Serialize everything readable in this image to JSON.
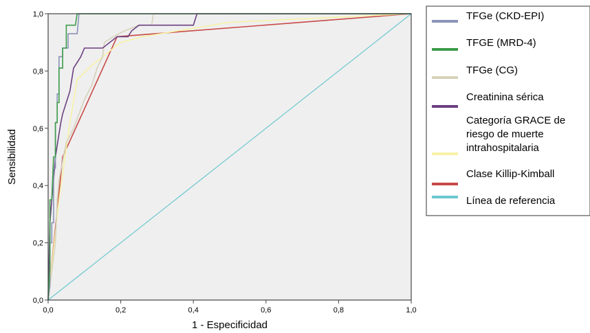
{
  "chart_data": {
    "type": "line",
    "title": "",
    "xlabel": "1 - Especificidad",
    "ylabel": "Sensibilidad",
    "xlim": [
      0,
      1
    ],
    "ylim": [
      0,
      1
    ],
    "xticks": [
      "0,0",
      "0,2",
      "0,4",
      "0,6",
      "0,8",
      "1,0"
    ],
    "yticks": [
      "0,0",
      "0,2",
      "0,4",
      "0,6",
      "0,8",
      "1,0"
    ],
    "grid": false,
    "legend_position": "right",
    "background": "#efefef",
    "series": [
      {
        "name": "TFGe (CKD-EPI)",
        "color": "#8a93b8",
        "points": [
          [
            0,
            0
          ],
          [
            0.005,
            0.05
          ],
          [
            0.005,
            0.2
          ],
          [
            0.01,
            0.2
          ],
          [
            0.01,
            0.27
          ],
          [
            0.015,
            0.27
          ],
          [
            0.015,
            0.46
          ],
          [
            0.02,
            0.46
          ],
          [
            0.02,
            0.62
          ],
          [
            0.025,
            0.62
          ],
          [
            0.025,
            0.72
          ],
          [
            0.03,
            0.72
          ],
          [
            0.03,
            0.85
          ],
          [
            0.04,
            0.85
          ],
          [
            0.04,
            0.88
          ],
          [
            0.055,
            0.88
          ],
          [
            0.055,
            0.93
          ],
          [
            0.08,
            0.93
          ],
          [
            0.085,
            1.0
          ],
          [
            1,
            1
          ]
        ]
      },
      {
        "name": "TFGE (MRD-4)",
        "color": "#3d9b4a",
        "points": [
          [
            0,
            0
          ],
          [
            0.005,
            0.12
          ],
          [
            0.005,
            0.35
          ],
          [
            0.01,
            0.35
          ],
          [
            0.015,
            0.5
          ],
          [
            0.02,
            0.5
          ],
          [
            0.02,
            0.62
          ],
          [
            0.025,
            0.62
          ],
          [
            0.025,
            0.69
          ],
          [
            0.03,
            0.69
          ],
          [
            0.03,
            0.81
          ],
          [
            0.04,
            0.81
          ],
          [
            0.04,
            0.88
          ],
          [
            0.05,
            0.88
          ],
          [
            0.05,
            0.96
          ],
          [
            0.075,
            0.96
          ],
          [
            0.08,
            1.0
          ],
          [
            1,
            1
          ]
        ]
      },
      {
        "name": "TFGe (CG)",
        "color": "#d6d2bb",
        "points": [
          [
            0,
            0
          ],
          [
            0.02,
            0.2
          ],
          [
            0.025,
            0.35
          ],
          [
            0.03,
            0.42
          ],
          [
            0.05,
            0.55
          ],
          [
            0.07,
            0.6
          ],
          [
            0.085,
            0.65
          ],
          [
            0.1,
            0.7
          ],
          [
            0.12,
            0.75
          ],
          [
            0.135,
            0.81
          ],
          [
            0.15,
            0.85
          ],
          [
            0.155,
            0.9
          ],
          [
            0.18,
            0.92
          ],
          [
            0.21,
            0.94
          ],
          [
            0.25,
            0.96
          ],
          [
            0.285,
            0.96
          ],
          [
            0.29,
            1.0
          ],
          [
            1,
            1
          ]
        ]
      },
      {
        "name": "Creatinina sérica",
        "color": "#6b3f7f",
        "points": [
          [
            0,
            0
          ],
          [
            0.005,
            0.27
          ],
          [
            0.01,
            0.35
          ],
          [
            0.015,
            0.42
          ],
          [
            0.02,
            0.5
          ],
          [
            0.025,
            0.54
          ],
          [
            0.03,
            0.58
          ],
          [
            0.035,
            0.62
          ],
          [
            0.04,
            0.65
          ],
          [
            0.05,
            0.69
          ],
          [
            0.06,
            0.73
          ],
          [
            0.07,
            0.81
          ],
          [
            0.09,
            0.85
          ],
          [
            0.1,
            0.88
          ],
          [
            0.15,
            0.88
          ],
          [
            0.19,
            0.92
          ],
          [
            0.22,
            0.92
          ],
          [
            0.23,
            0.94
          ],
          [
            0.25,
            0.96
          ],
          [
            0.4,
            0.96
          ],
          [
            0.41,
            1.0
          ],
          [
            1,
            1
          ]
        ]
      },
      {
        "name": "Categoría GRACE de riesgo de muerte intrahospitalaria",
        "color": "#f7f2a6",
        "points": [
          [
            0,
            0
          ],
          [
            0.01,
            0.12
          ],
          [
            0.03,
            0.35
          ],
          [
            0.06,
            0.62
          ],
          [
            0.08,
            0.77
          ],
          [
            0.12,
            0.82
          ],
          [
            0.2,
            0.9
          ],
          [
            0.26,
            0.92
          ],
          [
            0.5,
            0.97
          ],
          [
            1,
            1
          ]
        ]
      },
      {
        "name": "Clase Killip-Kimball",
        "color": "#c84a48",
        "points": [
          [
            0,
            0
          ],
          [
            0.04,
            0.5
          ],
          [
            0.19,
            0.92
          ],
          [
            1,
            1
          ]
        ]
      },
      {
        "name": "Línea de referencia",
        "color": "#6cc8cf",
        "points": [
          [
            0,
            0
          ],
          [
            1,
            1
          ]
        ]
      }
    ]
  }
}
